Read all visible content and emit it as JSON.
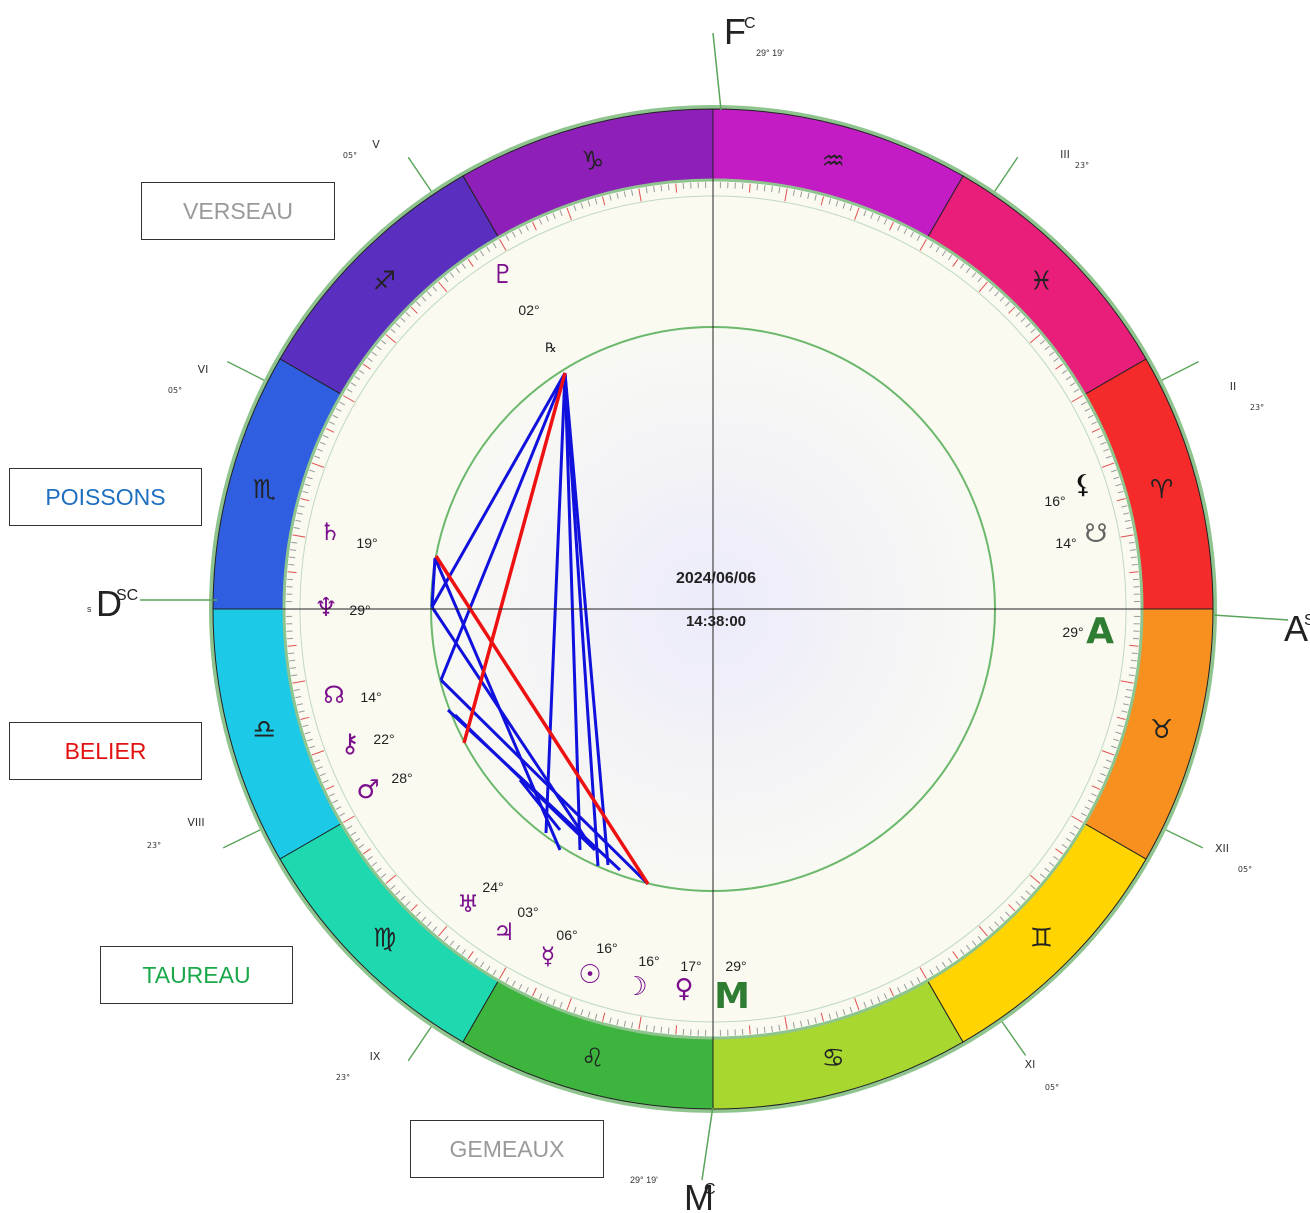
{
  "center": {
    "date": "2024/06/06",
    "time": "14:38:00"
  },
  "colors": {
    "ring_stroke": "#8fc48f",
    "inner_bg": "#fafaf1",
    "aspect_blue": "#1111dd",
    "aspect_red": "#ee1111",
    "glyph_purple": "#7b0f8c",
    "angle_green": "#2e7d32"
  },
  "signs": [
    {
      "name": "capricorn",
      "glyph": "♑",
      "color": "#8e1fb8"
    },
    {
      "name": "sagittarius",
      "glyph": "♐",
      "color": "#5a2fc0"
    },
    {
      "name": "scorpio",
      "glyph": "♏",
      "color": "#2f5fe0"
    },
    {
      "name": "libra",
      "glyph": "♎",
      "color": "#1cc9e6"
    },
    {
      "name": "virgo",
      "glyph": "♍",
      "color": "#1ed8b0"
    },
    {
      "name": "leo",
      "glyph": "♌",
      "color": "#3db43d"
    },
    {
      "name": "cancer",
      "glyph": "♋",
      "color": "#a8d830"
    },
    {
      "name": "gemini",
      "glyph": "♊",
      "color": "#ffd400"
    },
    {
      "name": "taurus",
      "glyph": "♉",
      "color": "#f7901e"
    },
    {
      "name": "aries",
      "glyph": "♈",
      "color": "#f52a2a"
    },
    {
      "name": "pisces",
      "glyph": "♓",
      "color": "#e91e7a"
    },
    {
      "name": "aquarius",
      "glyph": "♒",
      "color": "#c41cc4"
    }
  ],
  "houses": [
    {
      "numeral": "III",
      "degree": "23°"
    },
    {
      "numeral": "II",
      "degree": "23°"
    },
    {
      "numeral": "XII",
      "degree": "05°"
    },
    {
      "numeral": "XI",
      "degree": "05°"
    },
    {
      "numeral": "IX",
      "degree": "23°"
    },
    {
      "numeral": "VIII",
      "degree": "23°"
    },
    {
      "numeral": "VI",
      "degree": "05°"
    },
    {
      "numeral": "V",
      "degree": "05°"
    }
  ],
  "angles": {
    "fc": {
      "letter": "F",
      "sup": "C",
      "degree": "29° 19'"
    },
    "mc": {
      "letter": "M",
      "sup": "C",
      "degree": "29° 19'"
    },
    "asc": {
      "letter": "A",
      "sup": "S",
      "degree": ""
    },
    "dsc": {
      "letter": "D",
      "sup": "SC",
      "degree": "s"
    }
  },
  "planets": [
    {
      "name": "pluto",
      "glyph": "♇",
      "degree": "02°"
    },
    {
      "name": "saturn",
      "glyph": "♄",
      "degree": "19°"
    },
    {
      "name": "neptune",
      "glyph": "♆",
      "degree": "29°"
    },
    {
      "name": "north-node",
      "glyph": "☊",
      "degree": "14°"
    },
    {
      "name": "chiron",
      "glyph": "⚷",
      "degree": "22°"
    },
    {
      "name": "mars",
      "glyph": "♂",
      "degree": "28°"
    },
    {
      "name": "uranus",
      "glyph": "♅",
      "degree": "24°"
    },
    {
      "name": "jupiter",
      "glyph": "♃",
      "degree": "03°"
    },
    {
      "name": "mercury",
      "glyph": "☿",
      "degree": "06°"
    },
    {
      "name": "sun",
      "glyph": "☉",
      "degree": "16°"
    },
    {
      "name": "moon",
      "glyph": "☽",
      "degree": "16°"
    },
    {
      "name": "venus",
      "glyph": "♀",
      "degree": "17°"
    },
    {
      "name": "mc-point",
      "glyph": "M",
      "degree": "29°"
    },
    {
      "name": "lilith",
      "glyph": "⚸",
      "degree": "16°"
    },
    {
      "name": "south-node",
      "glyph": "☋",
      "degree": "14°"
    },
    {
      "name": "asc-point",
      "glyph": "A",
      "degree": "29°"
    }
  ],
  "retrograde_mark": "℞",
  "callouts": {
    "verseau": {
      "label": "VERSEAU",
      "color": "#9a9a9a"
    },
    "poissons": {
      "label": "POISSONS",
      "color": "#1e6fbf"
    },
    "belier": {
      "label": "BELIER",
      "color": "#e31212"
    },
    "taureau": {
      "label": "TAUREAU",
      "color": "#1aa84a"
    },
    "gemeaux": {
      "label": "GEMEAUX",
      "color": "#9a9a9a"
    }
  }
}
